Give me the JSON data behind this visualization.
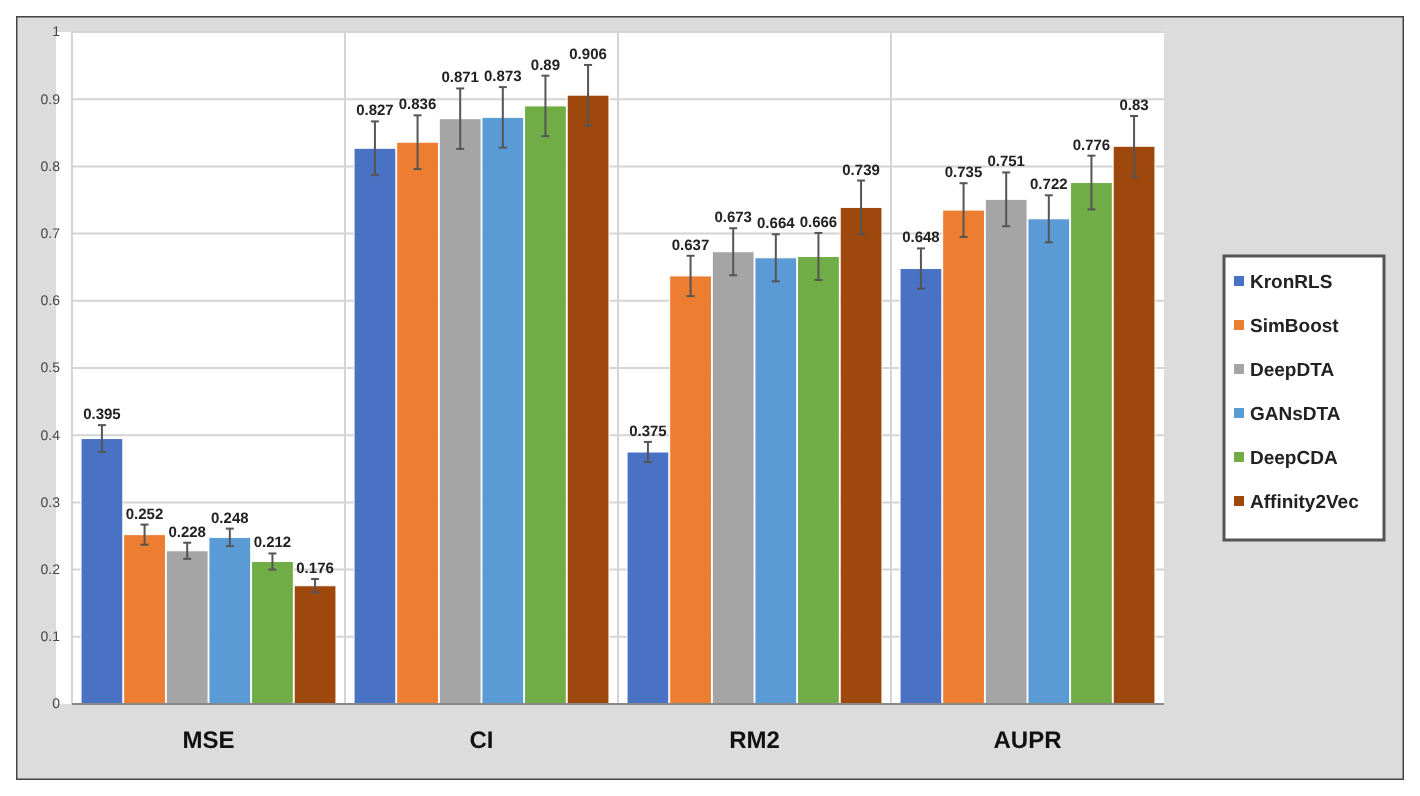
{
  "chart_data": {
    "type": "bar",
    "categories": [
      "MSE",
      "CI",
      "RM2",
      "AUPR"
    ],
    "series": [
      {
        "name": "KronRLS",
        "color": "#4a72c4",
        "values": [
          0.395,
          0.827,
          0.375,
          0.648
        ],
        "errors": [
          0.02,
          0.04,
          0.015,
          0.03
        ]
      },
      {
        "name": "SimBoost",
        "color": "#ed7d31",
        "values": [
          0.252,
          0.836,
          0.637,
          0.735
        ],
        "errors": [
          0.015,
          0.04,
          0.03,
          0.04
        ]
      },
      {
        "name": "DeepDTA",
        "color": "#a5a5a5",
        "values": [
          0.228,
          0.871,
          0.673,
          0.751
        ],
        "errors": [
          0.012,
          0.045,
          0.035,
          0.04
        ]
      },
      {
        "name": "GANsDTA",
        "color": "#5b9bd5",
        "values": [
          0.248,
          0.873,
          0.664,
          0.722
        ],
        "errors": [
          0.013,
          0.045,
          0.035,
          0.035
        ]
      },
      {
        "name": "DeepCDA",
        "color": "#70ad47",
        "values": [
          0.212,
          0.89,
          0.666,
          0.776
        ],
        "errors": [
          0.012,
          0.045,
          0.035,
          0.04
        ]
      },
      {
        "name": "Affinity2Vec",
        "color": "#9e480e",
        "values": [
          0.176,
          0.906,
          0.739,
          0.83
        ],
        "errors": [
          0.01,
          0.045,
          0.04,
          0.045
        ]
      }
    ],
    "ylim": [
      0,
      1
    ],
    "yticks": [
      0,
      0.1,
      0.2,
      0.3,
      0.4,
      0.5,
      0.6,
      0.7,
      0.8,
      0.9,
      1
    ],
    "grid": true,
    "legend": "right",
    "data_labels": true
  }
}
